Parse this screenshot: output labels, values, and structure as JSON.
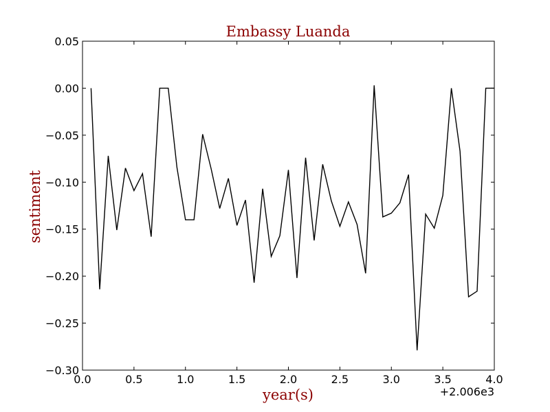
{
  "chart_data": {
    "type": "line",
    "title": "Embassy Luanda",
    "xlabel": "year(s)",
    "ylabel": "sentiment",
    "x_offset_label": "+2.006e3",
    "xlim": [
      0.0,
      4.0
    ],
    "ylim": [
      -0.3,
      0.05
    ],
    "x_ticks": [
      0.0,
      0.5,
      1.0,
      1.5,
      2.0,
      2.5,
      3.0,
      3.5,
      4.0
    ],
    "x_tick_labels": [
      "0.0",
      "0.5",
      "1.0",
      "1.5",
      "2.0",
      "2.5",
      "3.0",
      "3.5",
      "4.0"
    ],
    "y_ticks": [
      0.05,
      0.0,
      -0.05,
      -0.1,
      -0.15,
      -0.2,
      -0.25,
      -0.3
    ],
    "y_tick_labels": [
      "0.05",
      "0.00",
      "−0.05",
      "−0.10",
      "−0.15",
      "−0.20",
      "−0.25",
      "−0.30"
    ],
    "grid": false,
    "colors": {
      "title": "#8b0000",
      "axis_label": "#8b0000",
      "line": "#000000"
    },
    "series": [
      {
        "x": [
          0.083,
          0.167,
          0.25,
          0.333,
          0.417,
          0.5,
          0.583,
          0.667,
          0.75,
          0.833,
          0.917,
          1.0,
          1.083,
          1.167,
          1.25,
          1.333,
          1.417,
          1.5,
          1.583,
          1.667,
          1.75,
          1.833,
          1.917,
          2.0,
          2.083,
          2.167,
          2.25,
          2.333,
          2.417,
          2.5,
          2.583,
          2.667,
          2.75,
          2.833,
          2.917,
          3.0,
          3.083,
          3.167,
          3.25,
          3.333,
          3.417,
          3.5,
          3.583,
          3.667,
          3.75,
          3.833,
          3.917,
          4.0
        ],
        "values": [
          0.0,
          -0.214,
          -0.072,
          -0.151,
          -0.085,
          -0.109,
          -0.091,
          -0.158,
          0.0,
          0.0,
          -0.084,
          -0.14,
          -0.14,
          -0.049,
          -0.086,
          -0.128,
          -0.096,
          -0.146,
          -0.119,
          -0.207,
          -0.107,
          -0.179,
          -0.157,
          -0.087,
          -0.202,
          -0.074,
          -0.162,
          -0.081,
          -0.12,
          -0.147,
          -0.121,
          -0.145,
          -0.197,
          0.003,
          -0.137,
          -0.133,
          -0.122,
          -0.092,
          -0.279,
          -0.134,
          -0.149,
          -0.114,
          0.0,
          -0.067,
          -0.222,
          -0.216,
          0.0,
          0.0
        ]
      }
    ]
  }
}
